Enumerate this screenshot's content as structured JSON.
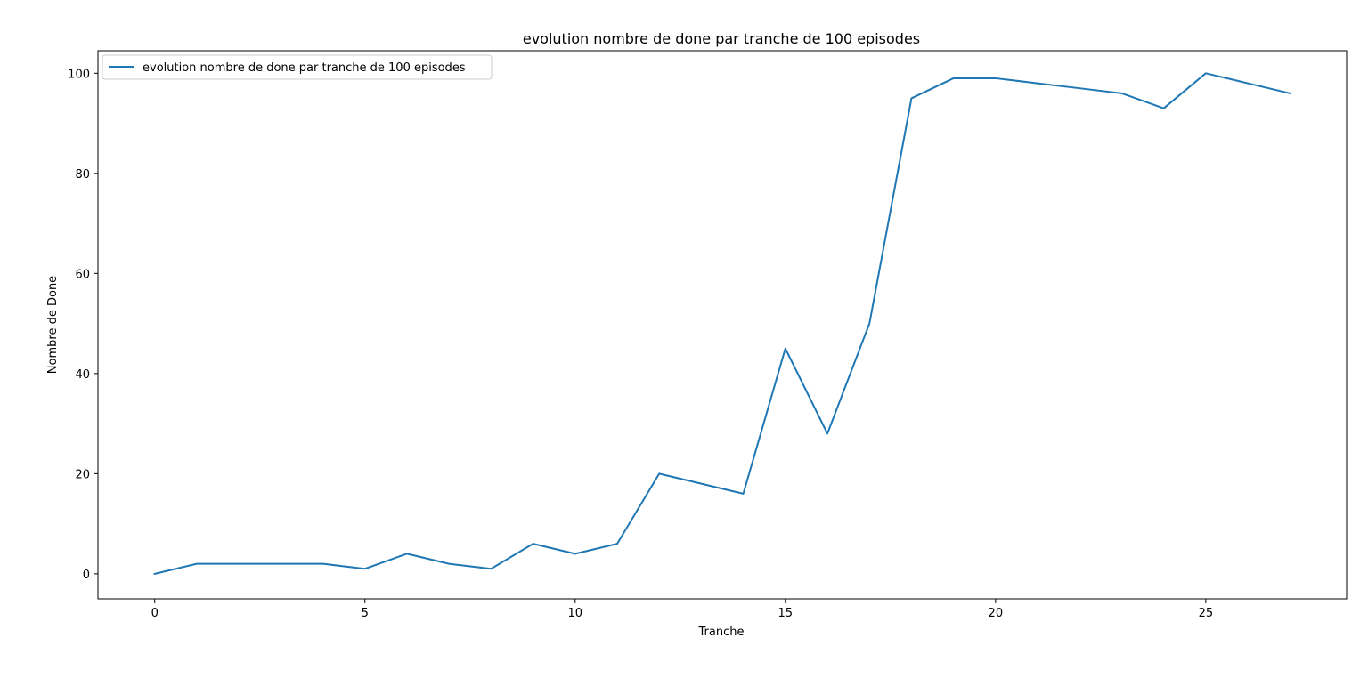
{
  "chart_data": {
    "type": "line",
    "title": "evolution nombre de done par tranche de 100 episodes",
    "xlabel": "Tranche",
    "ylabel": "Nombre de Done",
    "xlim": [
      -1.35,
      28.35
    ],
    "ylim": [
      -5,
      104.5
    ],
    "xticks": [
      0,
      5,
      10,
      15,
      20,
      25
    ],
    "yticks": [
      0,
      20,
      40,
      60,
      80,
      100
    ],
    "grid": false,
    "legend_position": "upper-left",
    "series": [
      {
        "name": "evolution nombre de done par tranche de 100 episodes",
        "color": "#1f77b4",
        "x": [
          0,
          1,
          2,
          3,
          4,
          5,
          6,
          7,
          8,
          9,
          10,
          11,
          12,
          13,
          14,
          15,
          16,
          17,
          18,
          19,
          20,
          21,
          22,
          23,
          24,
          25,
          26,
          27
        ],
        "values": [
          0,
          2,
          2,
          2,
          2,
          1,
          4,
          2,
          1,
          6,
          4,
          6,
          20,
          18,
          16,
          45,
          28,
          50,
          95,
          99,
          99,
          98,
          97,
          96,
          93,
          100,
          98,
          96
        ]
      }
    ]
  }
}
